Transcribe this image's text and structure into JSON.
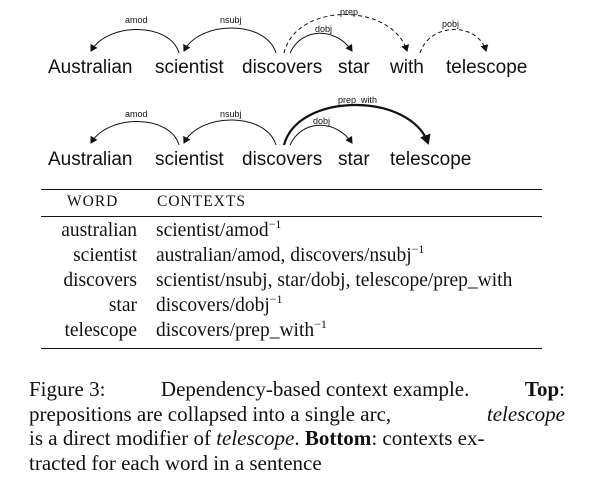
{
  "top_sentence": {
    "words": [
      "Australian",
      "scientist",
      "discovers",
      "star",
      "with",
      "telescope"
    ],
    "arc_labels": {
      "amod": "amod",
      "nsubj": "nsubj",
      "dobj": "dobj",
      "prep": "prep",
      "pobj": "pobj"
    }
  },
  "bottom_sentence": {
    "words": [
      "Australian",
      "scientist",
      "discovers",
      "star",
      "telescope"
    ],
    "arc_labels": {
      "amod": "amod",
      "nsubj": "nsubj",
      "dobj": "dobj",
      "prep_with": "prep_with"
    }
  },
  "table": {
    "headers": [
      "WORD",
      "CONTEXTS"
    ],
    "rows": [
      {
        "word": "australian",
        "context": "scientist/amod",
        "sup": "−1"
      },
      {
        "word": "scientist",
        "context": "australian/amod, discovers/nsubj",
        "sup": "−1"
      },
      {
        "word": "discovers",
        "context": "scientist/nsubj, star/dobj, telescope/prep_with",
        "sup": ""
      },
      {
        "word": "star",
        "context": "discovers/dobj",
        "sup": "−1"
      },
      {
        "word": "telescope",
        "context": "discovers/prep_with",
        "sup": "−1"
      }
    ]
  },
  "caption": {
    "fig_label": "Figure 3:",
    "text1": "Dependency-based context example.",
    "top_bold": "Top",
    "text2": ":",
    "line2_a": "prepositions are collapsed into a single arc,",
    "line2_em": "telescope",
    "line3_a": "is a direct modifier of",
    "line3_em": "telescope",
    "line3_b": ".",
    "bottom_bold": "Bottom",
    "line3_c": ": contexts ex-",
    "line4": "tracted for each word in a sentence"
  }
}
